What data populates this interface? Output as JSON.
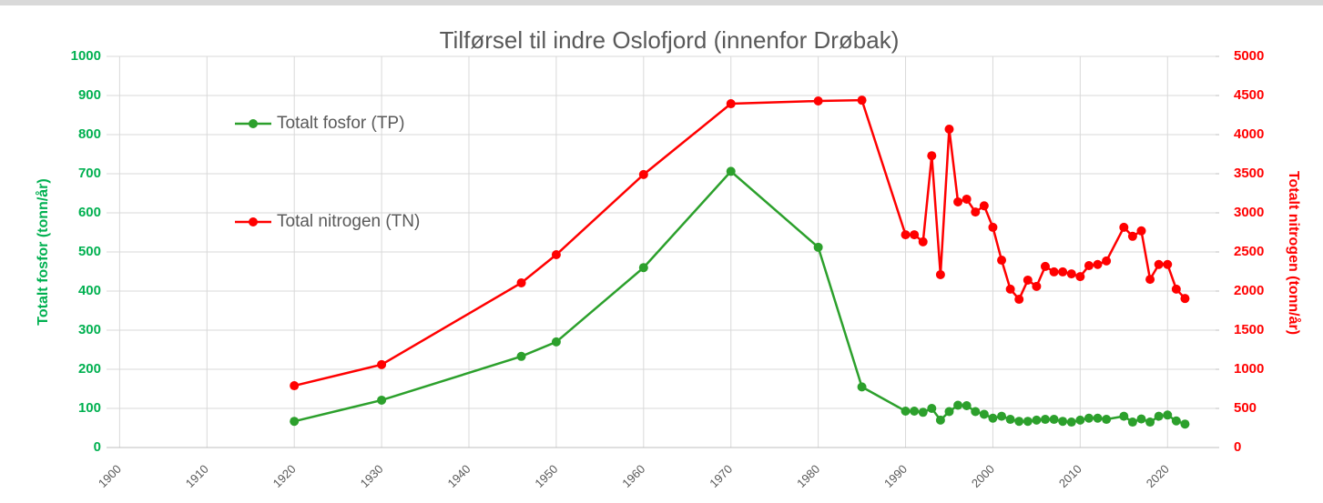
{
  "chart_data": {
    "type": "line",
    "title": "Tilførsel til indre Oslofjord (innenfor Drøbak)",
    "y_label": "Totalt fosfor (tonn/år)",
    "y2_label": "Totalt nitrogen (tonn/år)",
    "x": [
      1920,
      1930,
      1946,
      1950,
      1960,
      1970,
      1980,
      1985,
      1990,
      1991,
      1992,
      1993,
      1994,
      1995,
      1996,
      1997,
      1998,
      1999,
      2000,
      2001,
      2002,
      2003,
      2004,
      2005,
      2006,
      2007,
      2008,
      2009,
      2010,
      2011,
      2012,
      2013,
      2015,
      2016,
      2017,
      2018,
      2019,
      2020,
      2021,
      2022
    ],
    "series": [
      {
        "name": "Totalt fosfor (TP)",
        "color": "#2ca02c",
        "axis": "y",
        "values": [
          67,
          121,
          233,
          270,
          460,
          706,
          512,
          155,
          93,
          93,
          90,
          100,
          70,
          92,
          108,
          107,
          92,
          85,
          75,
          80,
          72,
          67,
          67,
          70,
          72,
          72,
          67,
          65,
          70,
          75,
          75,
          72,
          80,
          65,
          73,
          65,
          80,
          83,
          68,
          60
        ]
      },
      {
        "name": "Total nitrogen (TN)",
        "color": "#ff0000",
        "axis": "y2",
        "values": [
          790,
          1060,
          2105,
          2465,
          3490,
          4395,
          4430,
          4440,
          2720,
          2720,
          2630,
          3730,
          2210,
          4070,
          3140,
          3175,
          3010,
          3090,
          2815,
          2395,
          2025,
          1895,
          2140,
          2060,
          2315,
          2245,
          2245,
          2220,
          2185,
          2325,
          2340,
          2385,
          2815,
          2700,
          2770,
          2150,
          2340,
          2340,
          2025,
          1905
        ]
      }
    ],
    "xlim": [
      1898.5,
      2025.5
    ],
    "xticks": [
      1900,
      1910,
      1920,
      1930,
      1940,
      1950,
      1960,
      1970,
      1980,
      1990,
      2000,
      2010,
      2020
    ],
    "ylim": [
      0,
      1000
    ],
    "yticks": [
      0,
      100,
      200,
      300,
      400,
      500,
      600,
      700,
      800,
      900,
      1000
    ],
    "y2lim": [
      0,
      5000
    ],
    "y2ticks": [
      0,
      500,
      1000,
      1500,
      2000,
      2500,
      3000,
      3500,
      4000,
      4500,
      5000
    ],
    "y_color": "#00b050",
    "y2_color": "#ff0000",
    "grid": true,
    "legend": "upper left"
  }
}
